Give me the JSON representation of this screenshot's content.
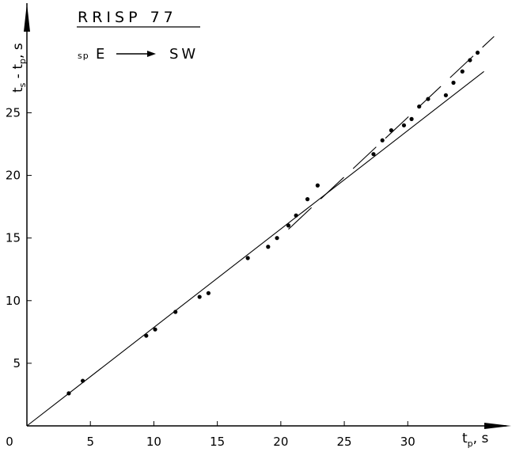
{
  "chart_data": {
    "type": "scatter",
    "title": "RRISP 77",
    "subtitle": {
      "prefix": "sp",
      "from": "E",
      "to": "SW"
    },
    "xlabel": {
      "main": "t",
      "sub": "p",
      "unit": ", s"
    },
    "ylabel": {
      "main_1": "t",
      "sub_1": "s",
      "minus": " - ",
      "main_2": "t",
      "sub_2": "p",
      "unit": ", s"
    },
    "xlim": [
      0,
      37.4
    ],
    "ylim": [
      0,
      33.5
    ],
    "x_ticks": [
      0,
      5,
      10,
      15,
      20,
      25,
      30
    ],
    "x_tick_labels": [
      "0",
      "5",
      "10",
      "15",
      "20",
      "25",
      "30"
    ],
    "y_ticks": [
      5,
      10,
      15,
      20,
      25
    ],
    "y_tick_labels": [
      "5",
      "10",
      "15",
      "20",
      "25"
    ],
    "grid": false,
    "series": [
      {
        "style": "points",
        "points": [
          [
            3.3,
            2.6
          ],
          [
            4.4,
            3.6
          ],
          [
            9.4,
            7.2
          ],
          [
            10.1,
            7.7
          ],
          [
            11.7,
            9.1
          ],
          [
            13.6,
            10.3
          ],
          [
            14.3,
            10.6
          ],
          [
            17.4,
            13.4
          ],
          [
            19.0,
            14.3
          ],
          [
            19.7,
            15.0
          ],
          [
            20.6,
            16.0
          ],
          [
            21.2,
            16.8
          ],
          [
            22.1,
            18.1
          ],
          [
            22.9,
            19.2
          ],
          [
            27.3,
            21.7
          ],
          [
            28.0,
            22.8
          ],
          [
            28.7,
            23.6
          ],
          [
            29.7,
            24.0
          ],
          [
            30.3,
            24.5
          ],
          [
            30.9,
            25.5
          ],
          [
            31.6,
            26.1
          ],
          [
            33.0,
            26.4
          ],
          [
            33.6,
            27.4
          ],
          [
            34.3,
            28.3
          ],
          [
            34.9,
            29.2
          ],
          [
            35.5,
            29.8
          ]
        ]
      },
      {
        "style": "solid-line",
        "x": [
          0,
          36.0
        ],
        "y": [
          0,
          28.3
        ]
      },
      {
        "style": "dashed-line",
        "x": [
          20.6,
          36.8
        ],
        "y": [
          15.7,
          31.1
        ]
      }
    ]
  }
}
